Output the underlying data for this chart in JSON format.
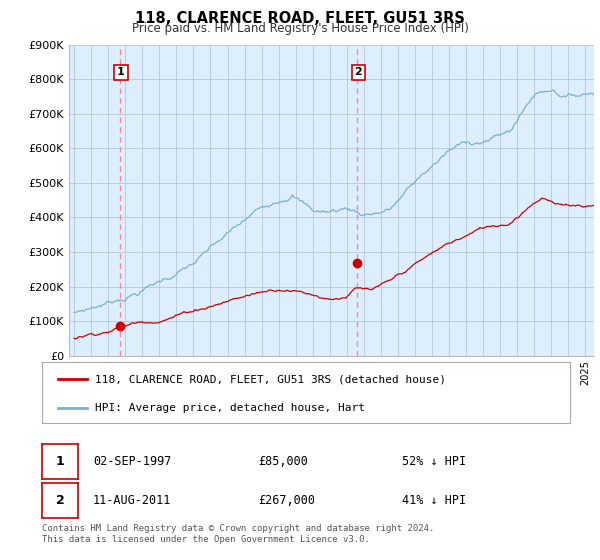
{
  "title": "118, CLARENCE ROAD, FLEET, GU51 3RS",
  "subtitle": "Price paid vs. HM Land Registry's House Price Index (HPI)",
  "ylim": [
    0,
    900000
  ],
  "yticks": [
    0,
    100000,
    200000,
    300000,
    400000,
    500000,
    600000,
    700000,
    800000,
    900000
  ],
  "ytick_labels": [
    "£0",
    "£100K",
    "£200K",
    "£300K",
    "£400K",
    "£500K",
    "£600K",
    "£700K",
    "£800K",
    "£900K"
  ],
  "hpi_color": "#7ab0d4",
  "price_color": "#cc0000",
  "vline_color": "#ff8888",
  "dot_color": "#cc0000",
  "plot_bg_color": "#ddeeff",
  "purchase1_year": 1997.67,
  "purchase1_price": 85000,
  "purchase1_label": "1",
  "purchase1_date": "02-SEP-1997",
  "purchase1_pct": "52% ↓ HPI",
  "purchase2_year": 2011.6,
  "purchase2_price": 267000,
  "purchase2_label": "2",
  "purchase2_date": "11-AUG-2011",
  "purchase2_pct": "41% ↓ HPI",
  "legend_line1": "118, CLARENCE ROAD, FLEET, GU51 3RS (detached house)",
  "legend_line2": "HPI: Average price, detached house, Hart",
  "footer1": "Contains HM Land Registry data © Crown copyright and database right 2024.",
  "footer2": "This data is licensed under the Open Government Licence v3.0.",
  "background_color": "#ffffff",
  "grid_color": "#bbccdd",
  "xstart": 1995,
  "xend": 2025.5
}
